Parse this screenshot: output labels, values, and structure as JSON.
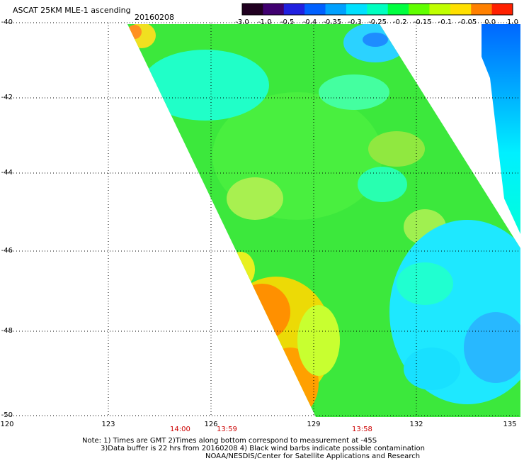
{
  "header": {
    "title": "ASCAT 25KM MLE-1 ascending",
    "date": "20160208"
  },
  "colorbar": {
    "labels": [
      "-3.0",
      "-1.0",
      "-0.5",
      "-0.4",
      "-0.35",
      "-0.3",
      "-0.25",
      "-0.2",
      "-0.15",
      "-0.1",
      "-0.05",
      "0.0",
      "1.0"
    ],
    "colors": [
      "#200020",
      "#400070",
      "#2020e0",
      "#0060ff",
      "#00a0ff",
      "#00e0ff",
      "#00ffc0",
      "#00ff40",
      "#60ff00",
      "#c0ff00",
      "#ffe000",
      "#ff8000",
      "#ff2000"
    ]
  },
  "axes": {
    "lat_labels": [
      "-40",
      "-42",
      "-44",
      "-46",
      "-48",
      "-50"
    ],
    "lon_labels": [
      "120",
      "123",
      "126",
      "129",
      "132",
      "135"
    ]
  },
  "times": [
    "14:00",
    "13:59",
    "13:58"
  ],
  "notes": {
    "line1": "Note: 1) Times are GMT 2)Times along bottom correspond to measurement at -45S",
    "line2": "3)Data buffer is 22 hrs from 20160208 4) Black wind barbs indicate possible contamination",
    "line3": "NOAA/NESDIS/Center for Satellite Applications and Research"
  }
}
